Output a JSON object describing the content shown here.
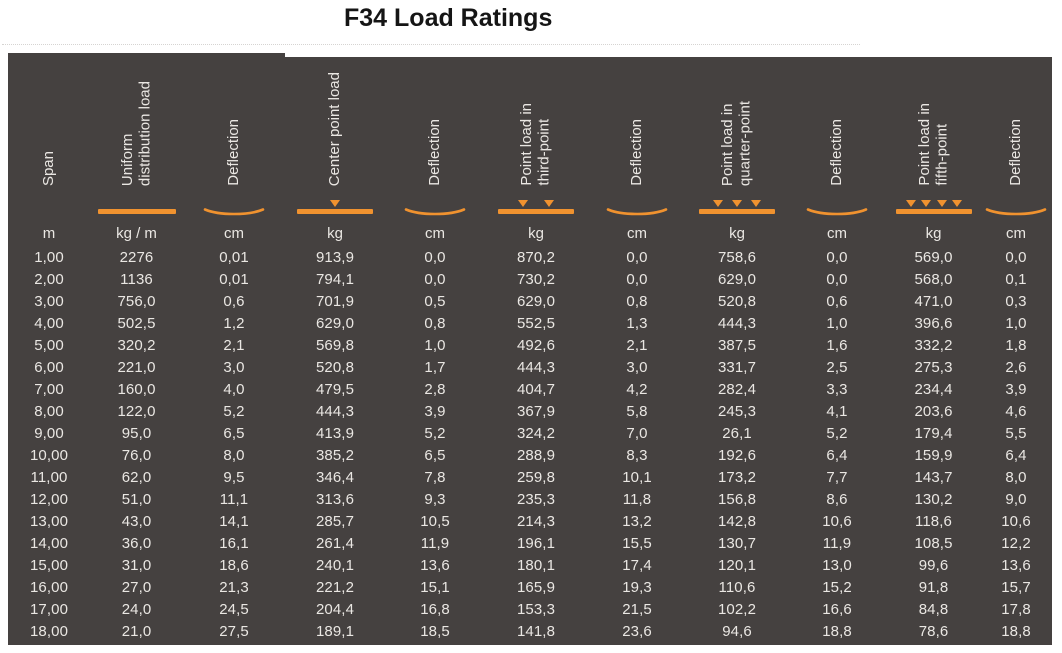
{
  "title": "F34 Load Ratings",
  "colors": {
    "table_background": "#454140",
    "accent_orange": "#f0922f",
    "table_text": "#eae7e3",
    "title_text": "#151515"
  },
  "table": {
    "columns": [
      {
        "label": "Span",
        "unit": "m",
        "diagram": "none"
      },
      {
        "label": "Uniform\ndistribution load",
        "unit": "kg / m",
        "diagram": "uniform-bar"
      },
      {
        "label": "Deflection",
        "unit": "cm",
        "diagram": "deflection-curve"
      },
      {
        "label": "Center point load",
        "unit": "kg",
        "diagram": "bar-1-point"
      },
      {
        "label": "Deflection",
        "unit": "cm",
        "diagram": "deflection-curve"
      },
      {
        "label": "Point load in\nthird-point",
        "unit": "kg",
        "diagram": "bar-2-point"
      },
      {
        "label": "Deflection",
        "unit": "cm",
        "diagram": "deflection-curve"
      },
      {
        "label": "Point load in\nquarter-point",
        "unit": "kg",
        "diagram": "bar-3-point"
      },
      {
        "label": "Deflection",
        "unit": "cm",
        "diagram": "deflection-curve"
      },
      {
        "label": "Point load in\nfifth-point",
        "unit": "kg",
        "diagram": "bar-4-point"
      },
      {
        "label": "Deflection",
        "unit": "cm",
        "diagram": "deflection-curve"
      }
    ],
    "rows": [
      [
        "1,00",
        "2276",
        "0,01",
        "913,9",
        "0,0",
        "870,2",
        "0,0",
        "758,6",
        "0,0",
        "569,0",
        "0,0"
      ],
      [
        "2,00",
        "1136",
        "0,01",
        "794,1",
        "0,0",
        "730,2",
        "0,0",
        "629,0",
        "0,0",
        "568,0",
        "0,1"
      ],
      [
        "3,00",
        "756,0",
        "0,6",
        "701,9",
        "0,5",
        "629,0",
        "0,8",
        "520,8",
        "0,6",
        "471,0",
        "0,3"
      ],
      [
        "4,00",
        "502,5",
        "1,2",
        "629,0",
        "0,8",
        "552,5",
        "1,3",
        "444,3",
        "1,0",
        "396,6",
        "1,0"
      ],
      [
        "5,00",
        "320,2",
        "2,1",
        "569,8",
        "1,0",
        "492,6",
        "2,1",
        "387,5",
        "1,6",
        "332,2",
        "1,8"
      ],
      [
        "6,00",
        "221,0",
        "3,0",
        "520,8",
        "1,7",
        "444,3",
        "3,0",
        "331,7",
        "2,5",
        "275,3",
        "2,6"
      ],
      [
        "7,00",
        "160,0",
        "4,0",
        "479,5",
        "2,8",
        "404,7",
        "4,2",
        "282,4",
        "3,3",
        "234,4",
        "3,9"
      ],
      [
        "8,00",
        "122,0",
        "5,2",
        "444,3",
        "3,9",
        "367,9",
        "5,8",
        "245,3",
        "4,1",
        "203,6",
        "4,6"
      ],
      [
        "9,00",
        "95,0",
        "6,5",
        "413,9",
        "5,2",
        "324,2",
        "7,0",
        "26,1",
        "5,2",
        "179,4",
        "5,5"
      ],
      [
        "10,00",
        "76,0",
        "8,0",
        "385,2",
        "6,5",
        "288,9",
        "8,3",
        "192,6",
        "6,4",
        "159,9",
        "6,4"
      ],
      [
        "11,00",
        "62,0",
        "9,5",
        "346,4",
        "7,8",
        "259,8",
        "10,1",
        "173,2",
        "7,7",
        "143,7",
        "8,0"
      ],
      [
        "12,00",
        "51,0",
        "11,1",
        "313,6",
        "9,3",
        "235,3",
        "11,8",
        "156,8",
        "8,6",
        "130,2",
        "9,0"
      ],
      [
        "13,00",
        "43,0",
        "14,1",
        "285,7",
        "10,5",
        "214,3",
        "13,2",
        "142,8",
        "10,6",
        "118,6",
        "10,6"
      ],
      [
        "14,00",
        "36,0",
        "16,1",
        "261,4",
        "11,9",
        "196,1",
        "15,5",
        "130,7",
        "11,9",
        "108,5",
        "12,2"
      ],
      [
        "15,00",
        "31,0",
        "18,6",
        "240,1",
        "13,6",
        "180,1",
        "17,4",
        "120,1",
        "13,0",
        "99,6",
        "13,6"
      ],
      [
        "16,00",
        "27,0",
        "21,3",
        "221,2",
        "15,1",
        "165,9",
        "19,3",
        "110,6",
        "15,2",
        "91,8",
        "15,7"
      ],
      [
        "17,00",
        "24,0",
        "24,5",
        "204,4",
        "16,8",
        "153,3",
        "21,5",
        "102,2",
        "16,6",
        "84,8",
        "17,8"
      ],
      [
        "18,00",
        "21,0",
        "27,5",
        "189,1",
        "18,5",
        "141,8",
        "23,6",
        "94,6",
        "18,8",
        "78,6",
        "18,8"
      ]
    ]
  }
}
